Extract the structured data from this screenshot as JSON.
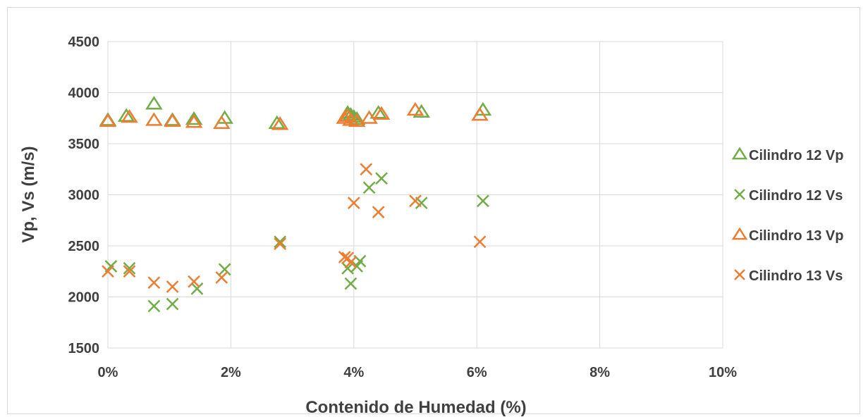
{
  "chart_data": {
    "type": "scatter",
    "title": "",
    "xlabel": "Contenido de Humedad (%)",
    "ylabel": "Vp, Vs (m/s)",
    "xlim": [
      0,
      0.1
    ],
    "ylim": [
      1500,
      4500
    ],
    "x_ticks": [
      0,
      0.02,
      0.04,
      0.06,
      0.08,
      0.1
    ],
    "x_tick_labels": [
      "0%",
      "2%",
      "4%",
      "6%",
      "8%",
      "10%"
    ],
    "y_ticks": [
      1500,
      2000,
      2500,
      3000,
      3500,
      4000,
      4500
    ],
    "y_tick_labels": [
      "1500",
      "2000",
      "2500",
      "3000",
      "3500",
      "4000",
      "4500"
    ],
    "grid": true,
    "legend_position": "right",
    "series": [
      {
        "name": "Cilindro 12 Vp",
        "marker": "triangle",
        "color": "#70ad47",
        "points": [
          [
            0.0,
            3730
          ],
          [
            0.003,
            3770
          ],
          [
            0.0075,
            3890
          ],
          [
            0.0105,
            3730
          ],
          [
            0.014,
            3740
          ],
          [
            0.019,
            3750
          ],
          [
            0.0275,
            3700
          ],
          [
            0.039,
            3800
          ],
          [
            0.0395,
            3780
          ],
          [
            0.04,
            3760
          ],
          [
            0.0405,
            3740
          ],
          [
            0.044,
            3800
          ],
          [
            0.051,
            3810
          ],
          [
            0.061,
            3830
          ]
        ]
      },
      {
        "name": "Cilindro 12 Vs",
        "marker": "x",
        "color": "#70ad47",
        "points": [
          [
            0.0005,
            2300
          ],
          [
            0.0035,
            2280
          ],
          [
            0.0075,
            1910
          ],
          [
            0.0105,
            1930
          ],
          [
            0.0145,
            2080
          ],
          [
            0.019,
            2270
          ],
          [
            0.028,
            2540
          ],
          [
            0.039,
            2280
          ],
          [
            0.0395,
            2130
          ],
          [
            0.0405,
            2300
          ],
          [
            0.041,
            2350
          ],
          [
            0.0425,
            3070
          ],
          [
            0.0445,
            3160
          ],
          [
            0.051,
            2920
          ],
          [
            0.061,
            2940
          ]
        ]
      },
      {
        "name": "Cilindro 13 Vp",
        "marker": "triangle",
        "color": "#ed7d31",
        "points": [
          [
            0.0,
            3720
          ],
          [
            0.0035,
            3760
          ],
          [
            0.0075,
            3730
          ],
          [
            0.0105,
            3720
          ],
          [
            0.014,
            3710
          ],
          [
            0.0185,
            3700
          ],
          [
            0.028,
            3690
          ],
          [
            0.0385,
            3750
          ],
          [
            0.039,
            3770
          ],
          [
            0.0395,
            3730
          ],
          [
            0.0405,
            3720
          ],
          [
            0.0425,
            3750
          ],
          [
            0.0445,
            3790
          ],
          [
            0.05,
            3830
          ],
          [
            0.0605,
            3780
          ]
        ]
      },
      {
        "name": "Cilindro 13 Vs",
        "marker": "x",
        "color": "#ed7d31",
        "points": [
          [
            0.0,
            2250
          ],
          [
            0.0035,
            2250
          ],
          [
            0.0075,
            2140
          ],
          [
            0.0105,
            2100
          ],
          [
            0.014,
            2150
          ],
          [
            0.0185,
            2190
          ],
          [
            0.028,
            2520
          ],
          [
            0.0385,
            2390
          ],
          [
            0.039,
            2380
          ],
          [
            0.0395,
            2340
          ],
          [
            0.04,
            2920
          ],
          [
            0.042,
            3250
          ],
          [
            0.044,
            2830
          ],
          [
            0.05,
            2940
          ],
          [
            0.0605,
            2540
          ]
        ]
      }
    ]
  }
}
